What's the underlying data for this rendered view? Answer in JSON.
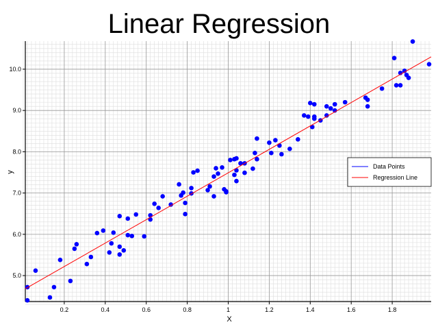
{
  "chart_data": {
    "type": "scatter",
    "title": "Linear Regression",
    "x_label": "X",
    "y_label": "y",
    "xlim": [
      0.01,
      1.99
    ],
    "ylim": [
      4.37,
      10.68
    ],
    "xticks": [
      0.2,
      0.4,
      0.6,
      0.8,
      1.0,
      1.2,
      1.4,
      1.6,
      1.8
    ],
    "yticks": [
      {
        "value": 5,
        "label": "5.0"
      },
      {
        "value": 6,
        "label": "6.0"
      },
      {
        "value": 7,
        "label": "7.0"
      },
      {
        "value": 8,
        "label": "8.0"
      },
      {
        "value": 9,
        "label": "9.0"
      },
      {
        "value": 10,
        "label": "10.0"
      }
    ],
    "grid": true,
    "minor_grid": true,
    "legend": "right",
    "series": [
      {
        "name": "Data Points",
        "color": "#0000ff",
        "mode": "markers",
        "x": [
          0.02,
          0.02,
          0.06,
          0.13,
          0.15,
          0.18,
          0.23,
          0.25,
          0.26,
          0.31,
          0.33,
          0.36,
          0.39,
          0.43,
          0.44,
          0.42,
          0.47,
          0.47,
          0.47,
          0.49,
          0.51,
          0.51,
          0.53,
          0.55,
          0.59,
          0.62,
          0.62,
          0.64,
          0.66,
          0.68,
          0.72,
          0.76,
          0.77,
          0.78,
          0.79,
          0.79,
          0.82,
          0.82,
          0.83,
          0.85,
          0.9,
          0.91,
          0.93,
          0.93,
          0.94,
          0.95,
          0.97,
          0.98,
          0.99,
          0.99,
          1.01,
          1.03,
          1.04,
          1.03,
          1.04,
          1.04,
          1.06,
          1.08,
          1.08,
          1.12,
          1.13,
          1.14,
          1.14,
          1.2,
          1.21,
          1.23,
          1.25,
          1.26,
          1.3,
          1.34,
          1.37,
          1.39,
          1.4,
          1.42,
          1.41,
          1.42,
          1.42,
          1.45,
          1.48,
          1.48,
          1.5,
          1.52,
          1.52,
          1.57,
          1.67,
          1.68,
          1.68,
          1.75,
          1.81,
          1.82,
          1.84,
          1.84,
          1.86,
          1.87,
          1.88,
          1.9,
          1.98
        ],
        "values": [
          4.72,
          4.4,
          5.12,
          4.47,
          4.72,
          5.38,
          4.87,
          5.65,
          5.76,
          5.28,
          5.45,
          6.03,
          6.09,
          5.78,
          6.04,
          5.56,
          6.44,
          5.7,
          5.51,
          5.61,
          6.38,
          5.98,
          5.96,
          6.48,
          5.95,
          6.36,
          6.46,
          6.74,
          6.64,
          6.92,
          6.72,
          7.21,
          6.94,
          7.01,
          6.49,
          6.76,
          7.12,
          6.99,
          7.5,
          7.54,
          7.07,
          7.16,
          6.92,
          7.4,
          7.6,
          7.47,
          7.62,
          7.09,
          7.02,
          7.04,
          7.8,
          7.82,
          7.84,
          7.44,
          7.55,
          7.29,
          7.72,
          7.72,
          7.49,
          7.59,
          7.97,
          8.32,
          7.82,
          8.22,
          7.97,
          8.28,
          8.15,
          7.94,
          8.07,
          8.3,
          8.88,
          8.85,
          9.18,
          9.15,
          8.6,
          8.8,
          8.85,
          8.76,
          9.1,
          8.88,
          9.05,
          9.0,
          9.15,
          9.2,
          9.31,
          9.26,
          9.1,
          9.53,
          10.27,
          9.61,
          9.61,
          9.91,
          9.96,
          9.86,
          9.79,
          10.67,
          10.12
        ]
      },
      {
        "name": "Regression Line",
        "color": "#ff0000",
        "mode": "line",
        "x": [
          0.01,
          1.99
        ],
        "values": [
          4.68,
          10.3
        ]
      }
    ]
  }
}
